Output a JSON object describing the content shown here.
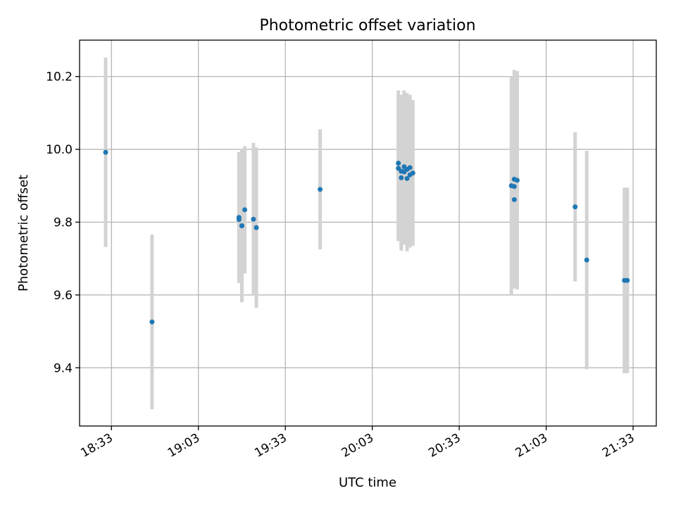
{
  "chart_data": {
    "type": "scatter",
    "title": "Photometric offset variation",
    "xlabel": "UTC time",
    "ylabel": "Photometric offset",
    "x_ticks": [
      "18:33",
      "19:03",
      "19:33",
      "20:03",
      "20:33",
      "21:03",
      "21:33"
    ],
    "y_ticks": [
      "9.4",
      "9.6",
      "9.8",
      "10.0",
      "10.2"
    ],
    "xlim": [
      "18:22",
      "21:41"
    ],
    "ylim": [
      9.24,
      10.3
    ],
    "grid": true,
    "errorbar_color": "#d3d3d3",
    "point_color": "#1f77b4",
    "points": [
      {
        "t": "18:31",
        "y": 9.992,
        "err": 0.26
      },
      {
        "t": "18:47",
        "y": 9.526,
        "err": 0.24
      },
      {
        "t": "19:17",
        "y": 9.813,
        "err": 0.18
      },
      {
        "t": "19:17",
        "y": 9.807,
        "err": 0.17
      },
      {
        "t": "19:18",
        "y": 9.79,
        "err": 0.21
      },
      {
        "t": "19:18",
        "y": 9.79,
        "err": 0.18
      },
      {
        "t": "19:19",
        "y": 9.834,
        "err": 0.175
      },
      {
        "t": "19:22",
        "y": 9.808,
        "err": 0.21
      },
      {
        "t": "19:23",
        "y": 9.785,
        "err": 0.22
      },
      {
        "t": "19:45",
        "y": 9.89,
        "err": 0.165
      },
      {
        "t": "20:12",
        "y": 9.962,
        "err": 0.2
      },
      {
        "t": "20:12",
        "y": 9.948,
        "err": 0.2
      },
      {
        "t": "20:13",
        "y": 9.94,
        "err": 0.21
      },
      {
        "t": "20:13",
        "y": 9.922,
        "err": 0.2
      },
      {
        "t": "20:14",
        "y": 9.952,
        "err": 0.21
      },
      {
        "t": "20:14",
        "y": 9.938,
        "err": 0.2
      },
      {
        "t": "20:15",
        "y": 9.945,
        "err": 0.21
      },
      {
        "t": "20:15",
        "y": 9.92,
        "err": 0.2
      },
      {
        "t": "20:16",
        "y": 9.95,
        "err": 0.2
      },
      {
        "t": "20:16",
        "y": 9.93,
        "err": 0.2
      },
      {
        "t": "20:17",
        "y": 9.935,
        "err": 0.2
      },
      {
        "t": "20:51",
        "y": 9.9,
        "err": 0.3
      },
      {
        "t": "20:52",
        "y": 9.918,
        "err": 0.3
      },
      {
        "t": "20:52",
        "y": 9.898,
        "err": 0.28
      },
      {
        "t": "20:52",
        "y": 9.862,
        "err": 0.23
      },
      {
        "t": "20:53",
        "y": 9.915,
        "err": 0.3
      },
      {
        "t": "21:13",
        "y": 9.842,
        "err": 0.205
      },
      {
        "t": "21:17",
        "y": 9.696,
        "err": 0.3
      },
      {
        "t": "21:30",
        "y": 9.64,
        "err": 0.255
      },
      {
        "t": "21:31",
        "y": 9.64,
        "err": 0.255
      }
    ]
  }
}
